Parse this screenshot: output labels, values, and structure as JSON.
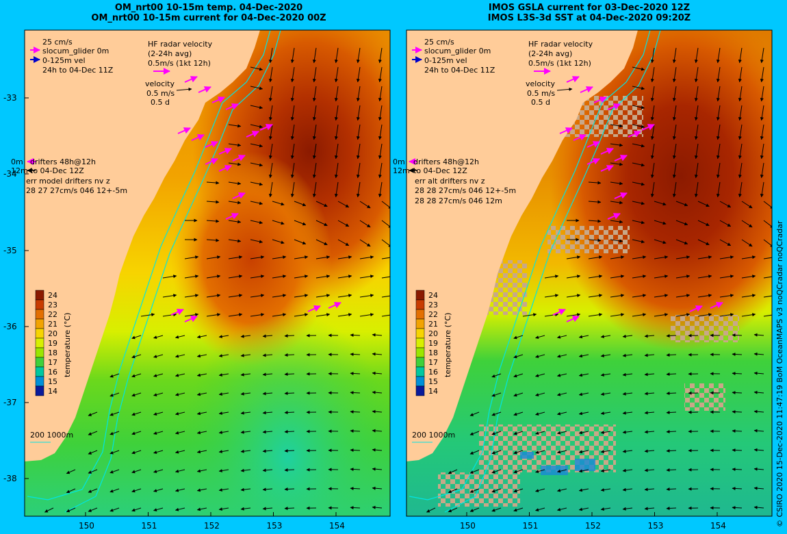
{
  "panels": [
    {
      "title_line1": "OM_nrt00 10-15m temp. 04-Dec-2020",
      "title_line2": "OM_nrt00 10-15m current for 04-Dec-2020 00Z",
      "legend": {
        "scale_text": "25 cm/s",
        "glider_text": "slocum_glider 0m",
        "vel_text": "0-125m vel",
        "period_text": "24h to 04-Dec 11Z",
        "hf_title": "HF radar velocity",
        "hf_avg": "(2-24h avg)",
        "hf_scale": "0.5m/s (1kt 12h)",
        "velocity_title": "velocity",
        "velocity_ms": "0.5 m/s",
        "velocity_d": "0.5 d",
        "drifters_0m": "0m",
        "drifters_line1": "drifters 48h@12h",
        "drifters_12m": "12m",
        "drifters_line2": "to 04-Dec 12Z",
        "err_line1": "err model drifters nv z",
        "err_line2": "28 27 27cm/s 046 12+-5m",
        "err_line3": "",
        "isobath_label": "200  1000m"
      }
    },
    {
      "title_line1": "IMOS GSLA current for 03-Dec-2020 12Z",
      "title_line2": "IMOS L3S-3d SST at 04-Dec-2020 09:20Z",
      "legend": {
        "scale_text": "25 cm/s",
        "glider_text": "slocum_glider 0m",
        "vel_text": "0-125m vel",
        "period_text": "24h to 04-Dec 11Z",
        "hf_title": "HF radar velocity",
        "hf_avg": "(2-24h avg)",
        "hf_scale": "0.5m/s (1kt 12h)",
        "velocity_title": "velocity",
        "velocity_ms": "0.5 m/s",
        "velocity_d": "0.5 d",
        "drifters_0m": "0m",
        "drifters_line1": "drifters 48h@12h",
        "drifters_12m": "12m",
        "drifters_line2": "to 04-Dec 12Z",
        "err_line1": "err alt drifters nv z",
        "err_line2": "28 28 27cm/s 046 12+-5m",
        "err_line3": "28 28 27cm/s 046 12m",
        "isobath_label": "200  1000m"
      }
    }
  ],
  "colorbar": {
    "label": "temperature (°C)",
    "ticks": [
      "24",
      "23",
      "22",
      "21",
      "20",
      "19",
      "18",
      "17",
      "16",
      "15",
      "14"
    ],
    "colors": [
      "#8b1a00",
      "#c83c00",
      "#e36f00",
      "#f2a300",
      "#f7d400",
      "#d8ef00",
      "#9be600",
      "#3fd13a",
      "#00c8a0",
      "#0090d8",
      "#0a1a9a"
    ]
  },
  "axes": {
    "lat_ticks": [
      "-33",
      "-34",
      "-35",
      "-36",
      "-37",
      "-38"
    ],
    "lon_ticks": [
      "150",
      "151",
      "152",
      "153",
      "154"
    ]
  },
  "colors": {
    "land": "#ffcc99",
    "frame_bg": "#00c8ff",
    "hf_radar": "#ff00ff",
    "current_arrow": "#000000",
    "isobath": "#00e5e5",
    "grey_cloud": "#c8a888"
  },
  "credit": "© CSIRO 2020  15-Dec-2020 11:47:19 BoM OceanMAPS v3 noQCradar noQCradar"
}
